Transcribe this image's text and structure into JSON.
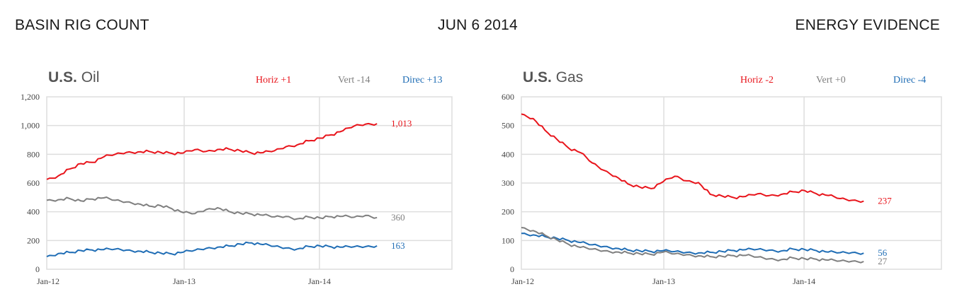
{
  "header": {
    "left": "BASIN RIG COUNT",
    "center": "JUN 6 2014",
    "right": "ENERGY EVIDENCE"
  },
  "colors": {
    "horiz": "#e8141b",
    "vert": "#7f7f7f",
    "direc": "#1f6db5",
    "grid": "#dedede",
    "axis_text": "#444444"
  },
  "chart_data": [
    {
      "type": "line",
      "title_bold": "U.S.",
      "title": "Oil",
      "xticks": [
        "Jan-12",
        "Jan-13",
        "Jan-14"
      ],
      "x_range": [
        "2012-01",
        "2014-06"
      ],
      "ylim": [
        0,
        1200
      ],
      "yticks": [
        "0",
        "200",
        "400",
        "600",
        "800",
        "1,000",
        "1,200"
      ],
      "grid": true,
      "legend": [
        {
          "name": "Horiz",
          "change": "+1",
          "color": "#e8141b"
        },
        {
          "name": "Vert",
          "change": "-14",
          "color": "#7f7f7f"
        },
        {
          "name": "Direc",
          "change": "+13",
          "color": "#1f6db5"
        }
      ],
      "series": [
        {
          "key": "Horiz",
          "color": "#e8141b",
          "last_label": "1,013",
          "values": [
            625,
            640,
            690,
            730,
            740,
            780,
            800,
            815,
            820,
            825,
            820,
            815,
            800,
            825,
            815,
            830,
            835,
            825,
            810,
            815,
            830,
            860,
            875,
            885,
            905,
            930,
            960,
            995,
            1010,
            1013
          ]
        },
        {
          "key": "Vert",
          "color": "#7f7f7f",
          "last_label": "360",
          "values": [
            480,
            475,
            485,
            470,
            485,
            495,
            480,
            470,
            460,
            445,
            450,
            430,
            385,
            380,
            410,
            425,
            400,
            390,
            385,
            380,
            370,
            375,
            360,
            355,
            350,
            360,
            365,
            360,
            375,
            360
          ]
        },
        {
          "key": "Direc",
          "color": "#1f6db5",
          "last_label": "163",
          "values": [
            88,
            100,
            110,
            125,
            130,
            135,
            140,
            135,
            130,
            125,
            120,
            115,
            110,
            125,
            140,
            150,
            160,
            175,
            185,
            175,
            165,
            155,
            150,
            150,
            155,
            150,
            150,
            155,
            158,
            163
          ]
        }
      ]
    },
    {
      "type": "line",
      "title_bold": "U.S.",
      "title": "Gas",
      "xticks": [
        "Jan-12",
        "Jan-13",
        "Jan-14"
      ],
      "x_range": [
        "2012-01",
        "2014-06"
      ],
      "ylim": [
        0,
        600
      ],
      "yticks": [
        "0",
        "100",
        "200",
        "300",
        "400",
        "500",
        "600"
      ],
      "grid": true,
      "legend": [
        {
          "name": "Horiz",
          "change": "-2",
          "color": "#e8141b"
        },
        {
          "name": "Vert",
          "change": "+0",
          "color": "#7f7f7f"
        },
        {
          "name": "Direc",
          "change": "-4",
          "color": "#1f6db5"
        }
      ],
      "series": [
        {
          "key": "Horiz",
          "color": "#e8141b",
          "last_label": "237",
          "values": [
            540,
            520,
            480,
            450,
            420,
            405,
            370,
            345,
            325,
            300,
            290,
            285,
            300,
            320,
            305,
            300,
            260,
            255,
            250,
            255,
            265,
            260,
            265,
            265,
            270,
            260,
            255,
            245,
            240,
            237
          ]
        },
        {
          "key": "Direc",
          "color": "#1f6db5",
          "last_label": "56",
          "values": [
            125,
            115,
            110,
            105,
            98,
            92,
            85,
            80,
            75,
            70,
            68,
            66,
            60,
            58,
            56,
            55,
            58,
            62,
            66,
            70,
            72,
            70,
            68,
            66,
            65,
            62,
            58,
            57,
            58,
            56
          ]
        },
        {
          "key": "Vert",
          "color": "#7f7f7f",
          "last_label": "27",
          "values": [
            145,
            130,
            115,
            100,
            85,
            75,
            70,
            65,
            62,
            60,
            58,
            56,
            55,
            50,
            48,
            45,
            43,
            45,
            48,
            50,
            45,
            40,
            38,
            35,
            33,
            32,
            30,
            28,
            28,
            27
          ]
        }
      ]
    }
  ]
}
